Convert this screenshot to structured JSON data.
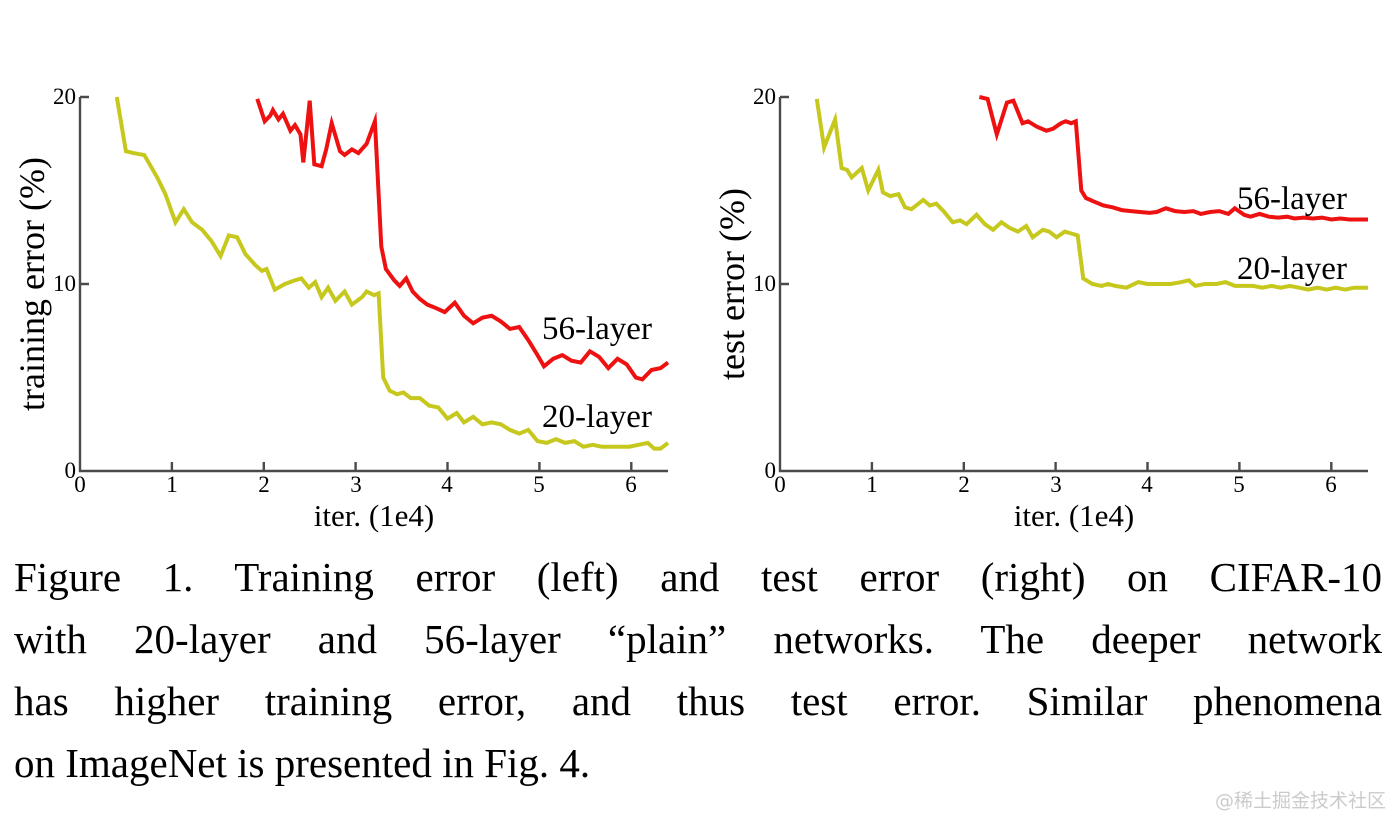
{
  "figure": {
    "caption_lines": [
      "Figure 1. Training error (left) and test error (right) on CIFAR-10",
      "with 20-layer and 56-layer “plain” networks. The deeper network",
      "has higher training error, and thus test error. Similar phenomena",
      "on ImageNet is presented in Fig. 4."
    ],
    "watermark": "@稀土掘金技术社区"
  },
  "colors": {
    "red": "#ee1111",
    "yellow": "#c6c81e",
    "axis": "#4a4a4a",
    "text": "#000000",
    "watermark": "#cbcbcb"
  },
  "chart_data": [
    {
      "type": "line",
      "title": "",
      "xlabel": "iter. (1e4)",
      "ylabel": "training error (%)",
      "xlim": [
        0,
        6.4
      ],
      "ylim": [
        0,
        20
      ],
      "xticks": [
        0,
        1,
        2,
        3,
        4,
        5,
        6
      ],
      "xtick_labels": [
        "0",
        "1",
        "2",
        "3",
        "4",
        "5",
        "6"
      ],
      "yticks": [
        0,
        10,
        20
      ],
      "ytick_labels": [
        "0",
        "10",
        "20"
      ],
      "grid": false,
      "legend": "in-plot text labels",
      "series": [
        {
          "name": "20-layer",
          "color": "yellow",
          "points": [
            [
              0.4,
              20.0
            ],
            [
              0.5,
              17.1
            ],
            [
              0.58,
              17.0
            ],
            [
              0.7,
              16.9
            ],
            [
              0.84,
              15.7
            ],
            [
              0.93,
              14.8
            ],
            [
              1.04,
              13.3
            ],
            [
              1.13,
              14.0
            ],
            [
              1.22,
              13.3
            ],
            [
              1.33,
              12.9
            ],
            [
              1.43,
              12.3
            ],
            [
              1.53,
              11.5
            ],
            [
              1.62,
              12.6
            ],
            [
              1.71,
              12.5
            ],
            [
              1.8,
              11.6
            ],
            [
              1.91,
              11.0
            ],
            [
              1.98,
              10.7
            ],
            [
              2.03,
              10.8
            ],
            [
              2.12,
              9.7
            ],
            [
              2.23,
              10.0
            ],
            [
              2.34,
              10.2
            ],
            [
              2.41,
              10.3
            ],
            [
              2.49,
              9.8
            ],
            [
              2.56,
              10.1
            ],
            [
              2.63,
              9.3
            ],
            [
              2.7,
              9.8
            ],
            [
              2.78,
              9.1
            ],
            [
              2.88,
              9.6
            ],
            [
              2.96,
              8.9
            ],
            [
              3.07,
              9.3
            ],
            [
              3.12,
              9.6
            ],
            [
              3.2,
              9.4
            ],
            [
              3.25,
              9.5
            ],
            [
              3.3,
              5.0
            ],
            [
              3.37,
              4.3
            ],
            [
              3.45,
              4.1
            ],
            [
              3.52,
              4.2
            ],
            [
              3.6,
              3.9
            ],
            [
              3.7,
              3.9
            ],
            [
              3.8,
              3.5
            ],
            [
              3.9,
              3.4
            ],
            [
              4.0,
              2.8
            ],
            [
              4.1,
              3.1
            ],
            [
              4.18,
              2.6
            ],
            [
              4.28,
              2.9
            ],
            [
              4.38,
              2.5
            ],
            [
              4.48,
              2.6
            ],
            [
              4.58,
              2.5
            ],
            [
              4.68,
              2.2
            ],
            [
              4.78,
              2.0
            ],
            [
              4.88,
              2.2
            ],
            [
              4.98,
              1.6
            ],
            [
              5.08,
              1.5
            ],
            [
              5.18,
              1.7
            ],
            [
              5.28,
              1.5
            ],
            [
              5.38,
              1.6
            ],
            [
              5.48,
              1.3
            ],
            [
              5.58,
              1.4
            ],
            [
              5.68,
              1.3
            ],
            [
              5.78,
              1.3
            ],
            [
              5.88,
              1.3
            ],
            [
              5.98,
              1.3
            ],
            [
              6.08,
              1.4
            ],
            [
              6.18,
              1.5
            ],
            [
              6.25,
              1.2
            ],
            [
              6.32,
              1.2
            ],
            [
              6.4,
              1.5
            ]
          ]
        },
        {
          "name": "56-layer",
          "color": "red",
          "points": [
            [
              1.93,
              19.9
            ],
            [
              2.01,
              18.7
            ],
            [
              2.07,
              19.0
            ],
            [
              2.1,
              19.3
            ],
            [
              2.16,
              18.8
            ],
            [
              2.21,
              19.1
            ],
            [
              2.29,
              18.2
            ],
            [
              2.34,
              18.5
            ],
            [
              2.4,
              18.0
            ],
            [
              2.43,
              16.5
            ],
            [
              2.5,
              19.8
            ],
            [
              2.55,
              16.4
            ],
            [
              2.63,
              16.3
            ],
            [
              2.68,
              17.2
            ],
            [
              2.74,
              18.6
            ],
            [
              2.83,
              17.1
            ],
            [
              2.88,
              16.9
            ],
            [
              2.96,
              17.2
            ],
            [
              3.03,
              17.0
            ],
            [
              3.12,
              17.5
            ],
            [
              3.21,
              18.7
            ],
            [
              3.28,
              12.0
            ],
            [
              3.33,
              10.8
            ],
            [
              3.42,
              10.2
            ],
            [
              3.48,
              9.9
            ],
            [
              3.55,
              10.3
            ],
            [
              3.62,
              9.6
            ],
            [
              3.7,
              9.2
            ],
            [
              3.78,
              8.9
            ],
            [
              3.88,
              8.7
            ],
            [
              3.97,
              8.5
            ],
            [
              4.08,
              9.0
            ],
            [
              4.18,
              8.3
            ],
            [
              4.28,
              7.9
            ],
            [
              4.38,
              8.2
            ],
            [
              4.48,
              8.3
            ],
            [
              4.58,
              8.0
            ],
            [
              4.68,
              7.6
            ],
            [
              4.78,
              7.7
            ],
            [
              4.88,
              7.0
            ],
            [
              4.98,
              6.2
            ],
            [
              5.05,
              5.6
            ],
            [
              5.15,
              6.0
            ],
            [
              5.25,
              6.2
            ],
            [
              5.35,
              5.9
            ],
            [
              5.45,
              5.8
            ],
            [
              5.55,
              6.4
            ],
            [
              5.65,
              6.1
            ],
            [
              5.75,
              5.5
            ],
            [
              5.85,
              6.0
            ],
            [
              5.95,
              5.7
            ],
            [
              6.05,
              5.0
            ],
            [
              6.12,
              4.9
            ],
            [
              6.22,
              5.4
            ],
            [
              6.32,
              5.5
            ],
            [
              6.4,
              5.8
            ]
          ]
        }
      ]
    },
    {
      "type": "line",
      "title": "",
      "xlabel": "iter. (1e4)",
      "ylabel": "test error (%)",
      "xlim": [
        0,
        6.4
      ],
      "ylim": [
        0,
        20
      ],
      "xticks": [
        0,
        1,
        2,
        3,
        4,
        5,
        6
      ],
      "xtick_labels": [
        "0",
        "1",
        "2",
        "3",
        "4",
        "5",
        "6"
      ],
      "yticks": [
        0,
        10,
        20
      ],
      "ytick_labels": [
        "0",
        "10",
        "20"
      ],
      "grid": false,
      "legend": "in-plot text labels",
      "series": [
        {
          "name": "20-layer",
          "color": "yellow",
          "points": [
            [
              0.4,
              19.9
            ],
            [
              0.48,
              17.3
            ],
            [
              0.6,
              18.8
            ],
            [
              0.67,
              16.2
            ],
            [
              0.73,
              16.1
            ],
            [
              0.78,
              15.7
            ],
            [
              0.89,
              16.2
            ],
            [
              0.96,
              15.0
            ],
            [
              1.07,
              16.1
            ],
            [
              1.12,
              14.9
            ],
            [
              1.2,
              14.7
            ],
            [
              1.29,
              14.8
            ],
            [
              1.36,
              14.1
            ],
            [
              1.43,
              14.0
            ],
            [
              1.56,
              14.5
            ],
            [
              1.63,
              14.2
            ],
            [
              1.7,
              14.3
            ],
            [
              1.78,
              13.9
            ],
            [
              1.88,
              13.3
            ],
            [
              1.96,
              13.4
            ],
            [
              2.03,
              13.2
            ],
            [
              2.14,
              13.7
            ],
            [
              2.23,
              13.2
            ],
            [
              2.32,
              12.9
            ],
            [
              2.41,
              13.3
            ],
            [
              2.5,
              13.0
            ],
            [
              2.59,
              12.8
            ],
            [
              2.68,
              13.1
            ],
            [
              2.75,
              12.5
            ],
            [
              2.86,
              12.9
            ],
            [
              2.93,
              12.8
            ],
            [
              3.01,
              12.5
            ],
            [
              3.1,
              12.8
            ],
            [
              3.17,
              12.7
            ],
            [
              3.24,
              12.6
            ],
            [
              3.3,
              10.3
            ],
            [
              3.4,
              10.0
            ],
            [
              3.5,
              9.9
            ],
            [
              3.57,
              10.0
            ],
            [
              3.65,
              9.9
            ],
            [
              3.77,
              9.8
            ],
            [
              3.9,
              10.1
            ],
            [
              4.0,
              10.0
            ],
            [
              4.12,
              10.0
            ],
            [
              4.25,
              10.0
            ],
            [
              4.37,
              10.1
            ],
            [
              4.45,
              10.2
            ],
            [
              4.52,
              9.9
            ],
            [
              4.62,
              10.0
            ],
            [
              4.75,
              10.0
            ],
            [
              4.85,
              10.1
            ],
            [
              4.95,
              9.9
            ],
            [
              5.05,
              9.9
            ],
            [
              5.15,
              9.9
            ],
            [
              5.25,
              9.8
            ],
            [
              5.35,
              9.9
            ],
            [
              5.45,
              9.8
            ],
            [
              5.55,
              9.9
            ],
            [
              5.65,
              9.8
            ],
            [
              5.75,
              9.7
            ],
            [
              5.85,
              9.8
            ],
            [
              5.95,
              9.7
            ],
            [
              6.05,
              9.8
            ],
            [
              6.15,
              9.7
            ],
            [
              6.25,
              9.8
            ],
            [
              6.4,
              9.8
            ]
          ]
        },
        {
          "name": "56-layer",
          "color": "red",
          "points": [
            [
              2.17,
              20.0
            ],
            [
              2.26,
              19.9
            ],
            [
              2.36,
              18.0
            ],
            [
              2.47,
              19.7
            ],
            [
              2.54,
              19.8
            ],
            [
              2.59,
              19.2
            ],
            [
              2.64,
              18.6
            ],
            [
              2.7,
              18.7
            ],
            [
              2.8,
              18.4
            ],
            [
              2.9,
              18.2
            ],
            [
              2.97,
              18.3
            ],
            [
              3.06,
              18.6
            ],
            [
              3.11,
              18.7
            ],
            [
              3.17,
              18.6
            ],
            [
              3.22,
              18.7
            ],
            [
              3.28,
              15.0
            ],
            [
              3.33,
              14.6
            ],
            [
              3.42,
              14.4
            ],
            [
              3.52,
              14.2
            ],
            [
              3.62,
              14.1
            ],
            [
              3.72,
              13.95
            ],
            [
              3.82,
              13.9
            ],
            [
              3.92,
              13.85
            ],
            [
              4.02,
              13.8
            ],
            [
              4.1,
              13.85
            ],
            [
              4.2,
              14.05
            ],
            [
              4.3,
              13.9
            ],
            [
              4.4,
              13.85
            ],
            [
              4.5,
              13.9
            ],
            [
              4.58,
              13.75
            ],
            [
              4.68,
              13.85
            ],
            [
              4.78,
              13.9
            ],
            [
              4.88,
              13.75
            ],
            [
              4.95,
              14.05
            ],
            [
              5.05,
              13.7
            ],
            [
              5.12,
              13.6
            ],
            [
              5.22,
              13.75
            ],
            [
              5.32,
              13.6
            ],
            [
              5.42,
              13.55
            ],
            [
              5.52,
              13.6
            ],
            [
              5.6,
              13.5
            ],
            [
              5.7,
              13.55
            ],
            [
              5.8,
              13.5
            ],
            [
              5.9,
              13.55
            ],
            [
              6.0,
              13.45
            ],
            [
              6.1,
              13.5
            ],
            [
              6.2,
              13.45
            ],
            [
              6.3,
              13.45
            ],
            [
              6.4,
              13.45
            ]
          ]
        }
      ]
    }
  ]
}
